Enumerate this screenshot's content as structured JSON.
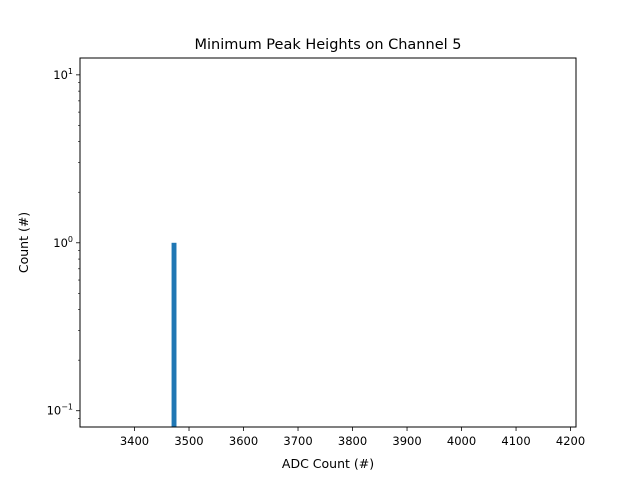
{
  "chart_data": {
    "type": "bar",
    "title": "Minimum Peak Heights on Channel 5",
    "xlabel": "ADC Count (#)",
    "ylabel": "Count (#)",
    "xlim": [
      3300,
      4210
    ],
    "ylim": [
      0.08,
      12.6
    ],
    "yscale": "log",
    "grid": false,
    "x_ticks": [
      3400,
      3500,
      3600,
      3700,
      3800,
      3900,
      4000,
      4100,
      4200
    ],
    "y_ticks": [
      {
        "value": 0.1,
        "base": "10",
        "exp": "−1"
      },
      {
        "value": 1,
        "base": "10",
        "exp": "0"
      },
      {
        "value": 10,
        "base": "10",
        "exp": "1"
      }
    ],
    "bars": [
      {
        "x0": 3468,
        "x1": 3477,
        "value": 1
      }
    ],
    "colors": {
      "bar": "#1f77b4"
    }
  }
}
